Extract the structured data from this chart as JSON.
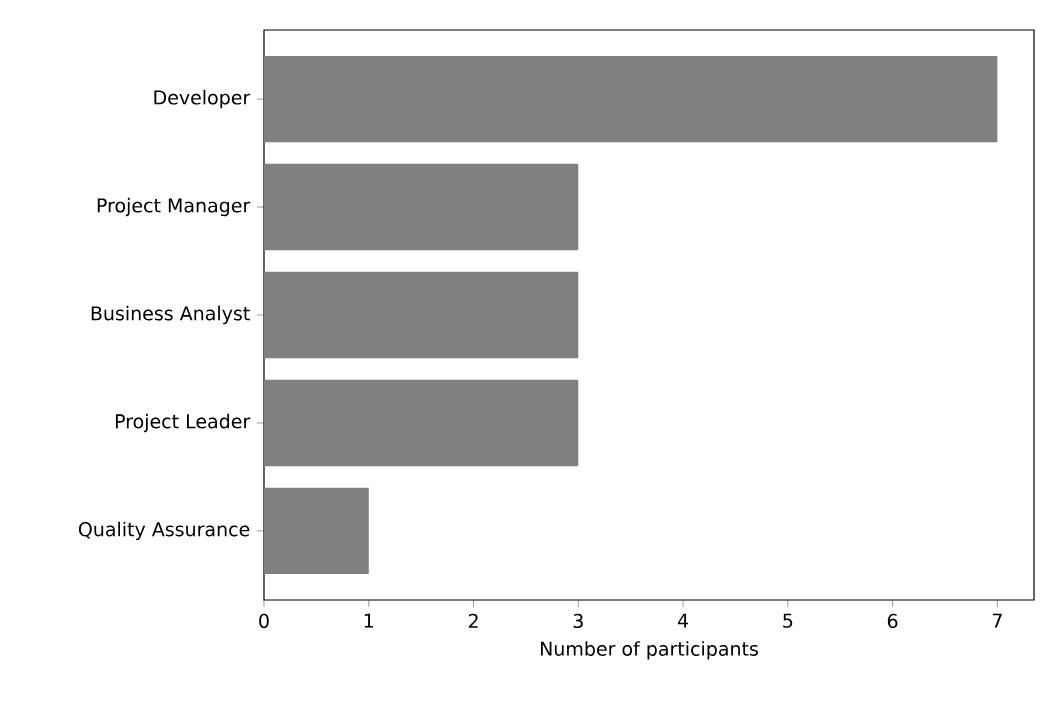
{
  "chart_data": {
    "type": "bar",
    "orientation": "horizontal",
    "categories": [
      "Developer",
      "Project Manager",
      "Business Analyst",
      "Project Leader",
      "Quality Assurance"
    ],
    "values": [
      7,
      3,
      3,
      3,
      1
    ],
    "color": "#808080",
    "xlabel": "Number of participants",
    "xlim": [
      0,
      7.35
    ],
    "xticks": [
      0,
      1,
      2,
      3,
      4,
      5,
      6,
      7
    ],
    "grid": false
  }
}
